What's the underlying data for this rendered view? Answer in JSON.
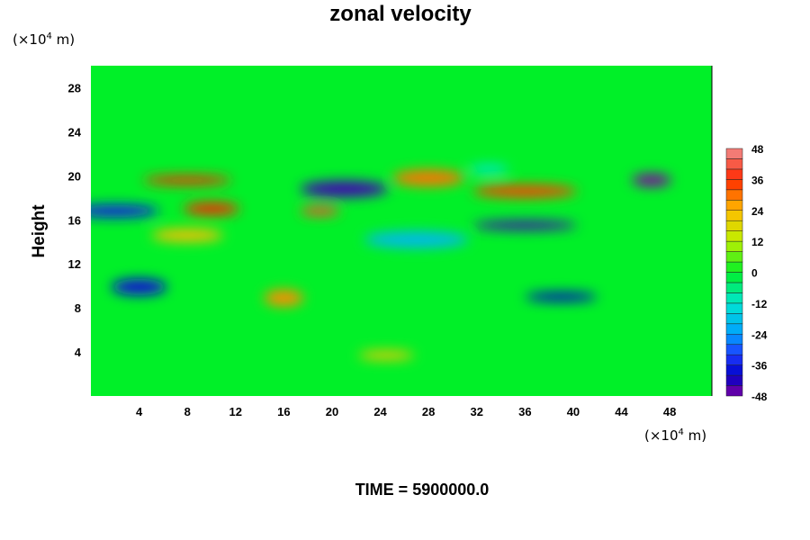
{
  "chart_data": {
    "type": "heatmap",
    "title": "zonal velocity",
    "ylabel": "Height",
    "x_unit": {
      "prefix": "(×10",
      "exp": "4",
      "suffix": " m)"
    },
    "y_unit": {
      "prefix": "(×10",
      "exp": "4",
      "suffix": " m)"
    },
    "xlim": [
      0,
      51.5
    ],
    "ylim": [
      0,
      30
    ],
    "x_ticks": [
      4,
      8,
      12,
      16,
      20,
      24,
      28,
      32,
      36,
      40,
      44,
      48
    ],
    "y_ticks": [
      4,
      8,
      12,
      16,
      20,
      24,
      28
    ],
    "colorbar": {
      "min": -48,
      "max": 48,
      "step": 4,
      "ticks": [
        48,
        36,
        24,
        12,
        0,
        -12,
        -24,
        -36,
        -48
      ]
    },
    "features": [
      {
        "x": 19,
        "y": 16.8,
        "value": 40
      },
      {
        "x": 10,
        "y": 17,
        "value": 36
      },
      {
        "x": 28,
        "y": 19.8,
        "value": 30
      },
      {
        "x": 8,
        "y": 19.6,
        "value": 36
      },
      {
        "x": 36,
        "y": 18.6,
        "value": 34
      },
      {
        "x": 16,
        "y": 8.9,
        "value": 28
      },
      {
        "x": 24.5,
        "y": 3.7,
        "value": 22
      },
      {
        "x": 8,
        "y": 14.6,
        "value": 24
      },
      {
        "x": 21,
        "y": 18.8,
        "value": -44
      },
      {
        "x": 36,
        "y": 15.5,
        "value": -44
      },
      {
        "x": 46.5,
        "y": 19.6,
        "value": -48
      },
      {
        "x": 4,
        "y": 9.9,
        "value": -38
      },
      {
        "x": 39,
        "y": 9.0,
        "value": -40
      },
      {
        "x": 2,
        "y": 16.8,
        "value": -36
      },
      {
        "x": 27,
        "y": 14.2,
        "value": -20
      },
      {
        "x": 33,
        "y": 20.6,
        "value": -12
      }
    ]
  },
  "footer": {
    "text": "TIME = 5900000.0"
  }
}
